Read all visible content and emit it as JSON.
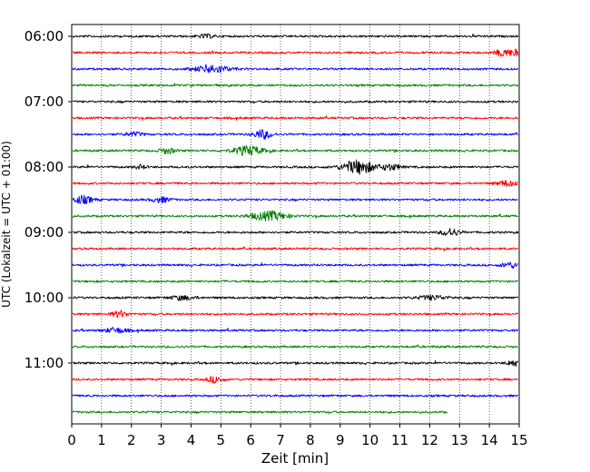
{
  "chart_data": {
    "type": "line",
    "chart_kind": "helicorder",
    "title": "",
    "xlabel": "Zeit  [min]",
    "ylabel": "UTC (Lokalzeit = UTC + 01:00)",
    "xlim": [
      0,
      15
    ],
    "x_ticks": [
      0,
      1,
      2,
      3,
      4,
      5,
      6,
      7,
      8,
      9,
      10,
      11,
      12,
      13,
      14,
      15
    ],
    "x_grid": "dotted-vertical",
    "y_tick_labels": [
      "06:00",
      "07:00",
      "08:00",
      "09:00",
      "10:00",
      "11:00"
    ],
    "minutes_per_trace": 15,
    "series": [
      {
        "start": "06:00",
        "color": "#000000",
        "end_min": 15,
        "bursts": [
          [
            4.5,
            0.25,
            1.2
          ]
        ]
      },
      {
        "start": "06:15",
        "color": "#ff0000",
        "end_min": 15,
        "bursts": [
          [
            14.5,
            0.3,
            2.4
          ],
          [
            14.9,
            0.15,
            1.5
          ]
        ]
      },
      {
        "start": "06:30",
        "color": "#0000ff",
        "end_min": 15,
        "bursts": [
          [
            4.7,
            0.55,
            2.6
          ]
        ]
      },
      {
        "start": "06:45",
        "color": "#008000",
        "end_min": 15,
        "bursts": []
      },
      {
        "start": "07:00",
        "color": "#000000",
        "end_min": 15,
        "bursts": []
      },
      {
        "start": "07:15",
        "color": "#ff0000",
        "end_min": 15,
        "bursts": []
      },
      {
        "start": "07:30",
        "color": "#0000ff",
        "end_min": 15,
        "bursts": [
          [
            6.4,
            0.3,
            3.0
          ],
          [
            2.1,
            0.3,
            1.3
          ]
        ]
      },
      {
        "start": "07:45",
        "color": "#008000",
        "end_min": 15,
        "bursts": [
          [
            5.9,
            0.5,
            3.0
          ],
          [
            3.2,
            0.25,
            2.0
          ]
        ]
      },
      {
        "start": "08:00",
        "color": "#000000",
        "end_min": 15,
        "bursts": [
          [
            9.6,
            0.55,
            4.5
          ],
          [
            10.7,
            0.3,
            2.0
          ],
          [
            2.3,
            0.2,
            1.2
          ]
        ]
      },
      {
        "start": "08:15",
        "color": "#ff0000",
        "end_min": 15,
        "bursts": [
          [
            14.6,
            0.35,
            1.8
          ]
        ]
      },
      {
        "start": "08:30",
        "color": "#0000ff",
        "end_min": 15,
        "bursts": [
          [
            0.35,
            0.35,
            2.6
          ],
          [
            3.0,
            0.3,
            1.7
          ]
        ]
      },
      {
        "start": "08:45",
        "color": "#008000",
        "end_min": 15,
        "bursts": [
          [
            6.6,
            0.6,
            3.0
          ]
        ]
      },
      {
        "start": "09:00",
        "color": "#000000",
        "end_min": 15,
        "bursts": [
          [
            12.7,
            0.3,
            2.5
          ]
        ]
      },
      {
        "start": "09:15",
        "color": "#ff0000",
        "end_min": 15,
        "bursts": []
      },
      {
        "start": "09:30",
        "color": "#0000ff",
        "end_min": 15,
        "bursts": [
          [
            14.7,
            0.3,
            1.8
          ]
        ]
      },
      {
        "start": "09:45",
        "color": "#008000",
        "end_min": 15,
        "bursts": []
      },
      {
        "start": "10:00",
        "color": "#000000",
        "end_min": 15,
        "bursts": [
          [
            3.7,
            0.4,
            1.4
          ],
          [
            12.1,
            0.5,
            1.4
          ]
        ]
      },
      {
        "start": "10:15",
        "color": "#ff0000",
        "end_min": 15,
        "bursts": [
          [
            1.6,
            0.25,
            2.2
          ]
        ]
      },
      {
        "start": "10:30",
        "color": "#0000ff",
        "end_min": 15,
        "bursts": [
          [
            1.5,
            0.4,
            1.6
          ]
        ]
      },
      {
        "start": "10:45",
        "color": "#008000",
        "end_min": 15,
        "bursts": []
      },
      {
        "start": "11:00",
        "color": "#000000",
        "end_min": 15,
        "bursts": [
          [
            14.8,
            0.2,
            2.0
          ]
        ]
      },
      {
        "start": "11:15",
        "color": "#ff0000",
        "end_min": 15,
        "bursts": [
          [
            4.8,
            0.25,
            2.0
          ]
        ]
      },
      {
        "start": "11:30",
        "color": "#0000ff",
        "end_min": 15,
        "bursts": []
      },
      {
        "start": "11:45",
        "color": "#008000",
        "end_min": 12.6,
        "bursts": []
      }
    ]
  }
}
